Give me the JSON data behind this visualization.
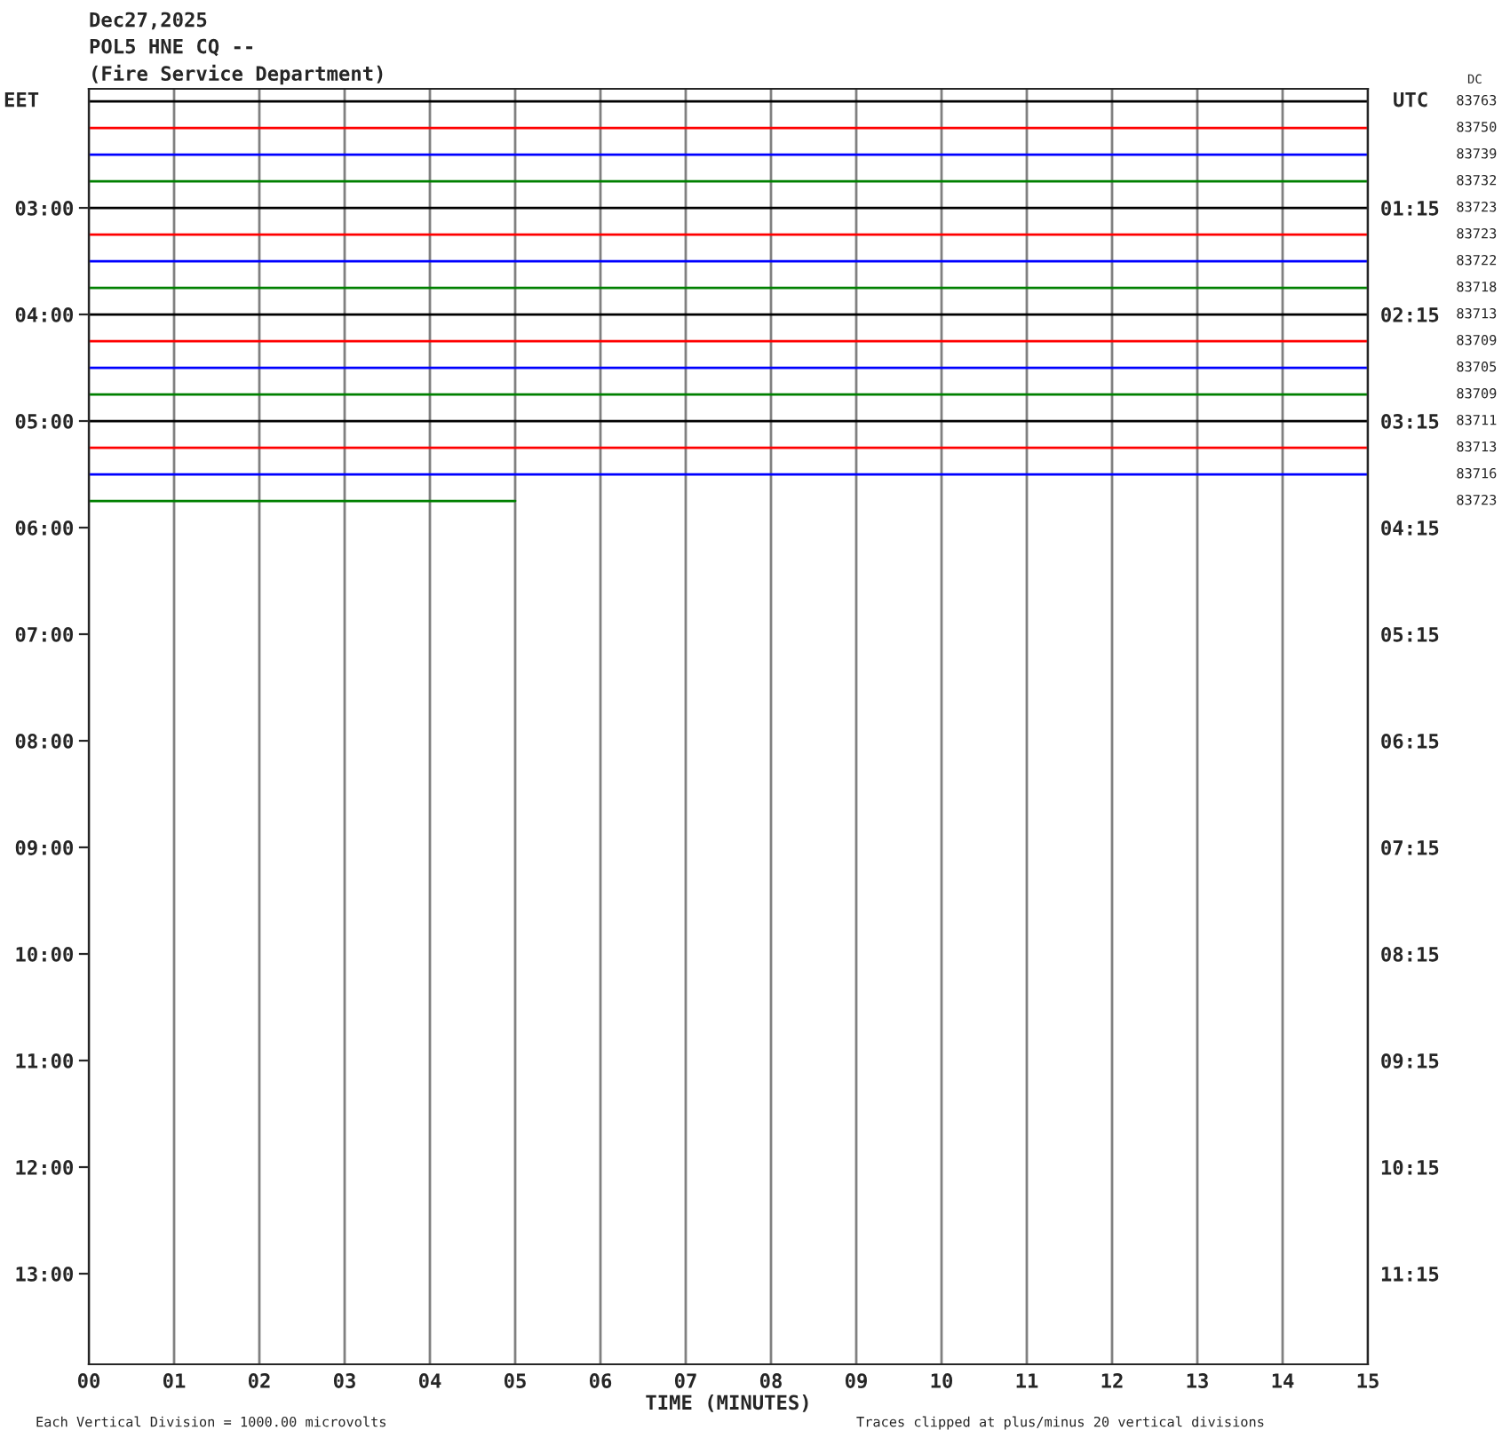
{
  "chart_data": {
    "type": "line",
    "title": "Dec27,2025",
    "subtitle": "POL5 HNE CQ --",
    "annotations": [
      "(Fire Service Department)",
      "DC",
      "Each Vertical Division = 1000.00 microvolts",
      "Traces clipped at plus/minus 20 vertical divisions",
      "83763",
      "83750",
      "83739",
      "83732",
      "83723",
      "83723",
      "83722",
      "83718",
      "83713",
      "83709",
      "83705",
      "83709",
      "83711",
      "83713",
      "83716",
      "83723"
    ],
    "xlabel": "TIME (MINUTES)",
    "ylabel": "EET",
    "y2label": "UTC",
    "x": [
      0,
      15
    ],
    "xlim": [
      0,
      15
    ],
    "xticks": [
      {
        "value": 0,
        "label": "00"
      },
      {
        "value": 1,
        "label": "01"
      },
      {
        "value": 2,
        "label": "02"
      },
      {
        "value": 3,
        "label": "03"
      },
      {
        "value": 4,
        "label": "04"
      },
      {
        "value": 5,
        "label": "05"
      },
      {
        "value": 6,
        "label": "06"
      },
      {
        "value": 7,
        "label": "07"
      },
      {
        "value": 8,
        "label": "08"
      },
      {
        "value": 9,
        "label": "09"
      },
      {
        "value": 10,
        "label": "10"
      },
      {
        "value": 11,
        "label": "11"
      },
      {
        "value": 12,
        "label": "12"
      },
      {
        "value": 13,
        "label": "13"
      },
      {
        "value": 14,
        "label": "14"
      },
      {
        "value": 15,
        "label": "15"
      }
    ],
    "ylim": [
      13.85,
      1.883
    ],
    "yticks": [
      {
        "value": 3,
        "label": "03:00"
      },
      {
        "value": 4,
        "label": "04:00"
      },
      {
        "value": 5,
        "label": "05:00"
      },
      {
        "value": 6,
        "label": "06:00"
      },
      {
        "value": 7,
        "label": "07:00"
      },
      {
        "value": 8,
        "label": "08:00"
      },
      {
        "value": 9,
        "label": "09:00"
      },
      {
        "value": 10,
        "label": "10:00"
      },
      {
        "value": 11,
        "label": "11:00"
      },
      {
        "value": 12,
        "label": "12:00"
      },
      {
        "value": 13,
        "label": "13:00"
      }
    ],
    "y2lim": [
      12.1,
      0.133
    ],
    "y2ticks": [
      {
        "value": 1.25,
        "label": "01:15"
      },
      {
        "value": 2.25,
        "label": "02:15"
      },
      {
        "value": 3.25,
        "label": "03:15"
      },
      {
        "value": 4.25,
        "label": "04:15"
      },
      {
        "value": 5.25,
        "label": "05:15"
      },
      {
        "value": 6.25,
        "label": "06:15"
      },
      {
        "value": 7.25,
        "label": "07:15"
      },
      {
        "value": 8.25,
        "label": "08:15"
      },
      {
        "value": 9.25,
        "label": "09:15"
      },
      {
        "value": 10.25,
        "label": "10:15"
      },
      {
        "value": 11.25,
        "label": "11:15"
      }
    ],
    "grid": "x",
    "legend": false,
    "series": [
      {
        "color": "#000000",
        "values": [
          2.0,
          2.0
        ]
      },
      {
        "color": "#ff0000",
        "values": [
          2.25,
          2.25
        ]
      },
      {
        "color": "#0000ff",
        "values": [
          2.5,
          2.5
        ]
      },
      {
        "color": "#008000",
        "values": [
          2.75,
          2.75
        ]
      },
      {
        "color": "#000000",
        "values": [
          3.0,
          3.0
        ]
      },
      {
        "color": "#ff0000",
        "values": [
          3.25,
          3.25
        ]
      },
      {
        "color": "#0000ff",
        "values": [
          3.5,
          3.5
        ]
      },
      {
        "color": "#008000",
        "values": [
          3.75,
          3.75
        ]
      },
      {
        "color": "#000000",
        "values": [
          4.0,
          4.0
        ]
      },
      {
        "color": "#ff0000",
        "values": [
          4.25,
          4.25
        ]
      },
      {
        "color": "#0000ff",
        "values": [
          4.5,
          4.5
        ]
      },
      {
        "color": "#008000",
        "values": [
          4.75,
          4.75
        ]
      },
      {
        "color": "#000000",
        "values": [
          5.0,
          5.0
        ]
      },
      {
        "color": "#ff0000",
        "values": [
          5.25,
          5.25
        ]
      },
      {
        "color": "#0000ff",
        "values": [
          5.5,
          5.5
        ]
      },
      {
        "color": "#008000",
        "x": [
          0,
          5
        ],
        "values": [
          5.75,
          5.75
        ]
      }
    ]
  }
}
